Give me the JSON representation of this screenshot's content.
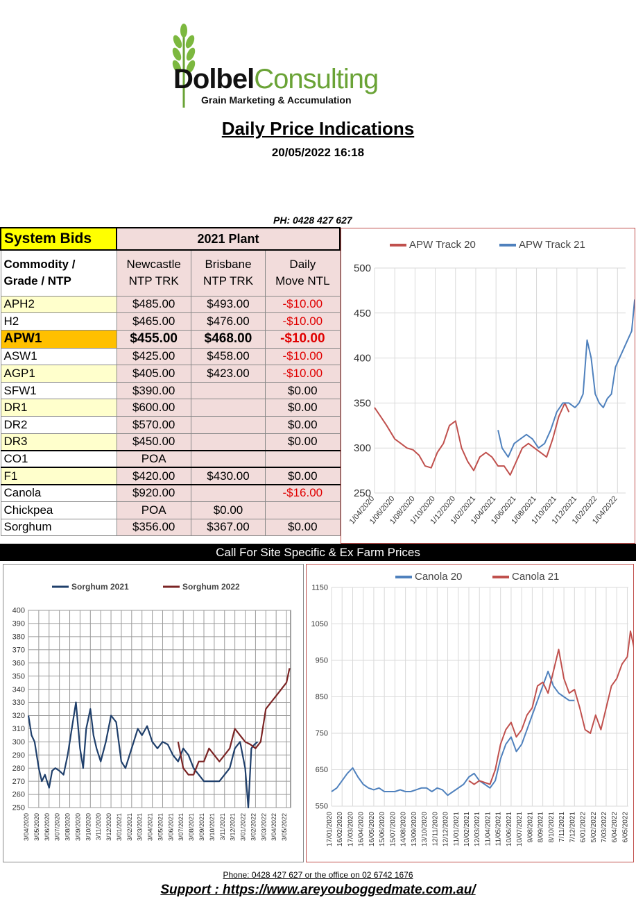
{
  "header": {
    "logo_brand_1": "Dolbel",
    "logo_brand_2": "Consulting",
    "logo_tagline": "Grain Marketing & Accumulation",
    "title": "Daily Price Indications",
    "datetime": "20/05/2022 16:18",
    "phone": "PH: 0428 427 627"
  },
  "table": {
    "system_bids": "System Bids",
    "plant": "2021 Plant",
    "col_commodity_1": "Commodity /",
    "col_commodity_2": "Grade / NTP",
    "col_newcastle_1": "Newcastle",
    "col_newcastle_2": "NTP TRK",
    "col_brisbane_1": "Brisbane",
    "col_brisbane_2": "NTP TRK",
    "col_move_1": "Daily",
    "col_move_2": "Move NTL",
    "rows": [
      {
        "grade": "APH2",
        "newcastle": "$485.00",
        "brisbane": "$493.00",
        "move": "-$10.00"
      },
      {
        "grade": "H2",
        "newcastle": "$465.00",
        "brisbane": "$476.00",
        "move": "-$10.00"
      },
      {
        "grade": "APW1",
        "newcastle": "$455.00",
        "brisbane": "$468.00",
        "move": "-$10.00"
      },
      {
        "grade": "ASW1",
        "newcastle": "$425.00",
        "brisbane": "$458.00",
        "move": "-$10.00"
      },
      {
        "grade": "AGP1",
        "newcastle": "$405.00",
        "brisbane": "$423.00",
        "move": "-$10.00"
      },
      {
        "grade": "SFW1",
        "newcastle": "$390.00",
        "brisbane": "",
        "move": "$0.00"
      },
      {
        "grade": "DR1",
        "newcastle": "$600.00",
        "brisbane": "",
        "move": "$0.00"
      },
      {
        "grade": "DR2",
        "newcastle": "$570.00",
        "brisbane": "",
        "move": "$0.00"
      },
      {
        "grade": "DR3",
        "newcastle": "$450.00",
        "brisbane": "",
        "move": "$0.00"
      },
      {
        "grade": "CO1",
        "newcastle": "POA",
        "brisbane": "",
        "move": ""
      },
      {
        "grade": "F1",
        "newcastle": "$420.00",
        "brisbane": "$430.00",
        "move": "$0.00"
      },
      {
        "grade": "Canola",
        "newcastle": "$920.00",
        "brisbane": "",
        "move": "-$16.00"
      },
      {
        "grade": "Chickpea",
        "newcastle": "POA",
        "brisbane": "$0.00",
        "move": ""
      },
      {
        "grade": "Sorghum",
        "newcastle": "$356.00",
        "brisbane": "$367.00",
        "move": "$0.00"
      }
    ]
  },
  "banner": "Call For Site Specific & Ex Farm Prices",
  "footer": {
    "phone": "Phone: 0428 427 627 or the office on 02 6742 1676",
    "support": "Support : https://www.areyouboggedmate.com.au/"
  },
  "colors": {
    "red_series": "#c0504d",
    "blue_series": "#4f81bd",
    "sorghum_2021": "#1f3f6b",
    "sorghum_2022": "#7b2424"
  },
  "chart_data": [
    {
      "type": "line",
      "ylim": [
        250,
        500
      ],
      "yticks": [
        250,
        300,
        350,
        400,
        450,
        500
      ],
      "xticks": [
        "1/04/2020",
        "1/06/2020",
        "1/08/2020",
        "1/10/2020",
        "1/12/2020",
        "1/02/2021",
        "1/04/2021",
        "1/06/2021",
        "1/08/2021",
        "1/10/2021",
        "1/12/2021",
        "1/02/2022",
        "1/04/2022"
      ],
      "legend": "top",
      "series": [
        {
          "name": "APW Track 20",
          "color": "#c0504d",
          "x": [
            0,
            0.3,
            0.6,
            1,
            1.3,
            1.6,
            1.9,
            2.2,
            2.5,
            2.8,
            3.1,
            3.4,
            3.7,
            4,
            4.3,
            4.6,
            4.9,
            5.2,
            5.5,
            5.8,
            6.1,
            6.4,
            6.7,
            7,
            7.3,
            7.6,
            7.9,
            8.2,
            8.5,
            8.8,
            9.1,
            9.4,
            9.6
          ],
          "y": [
            345,
            335,
            325,
            310,
            305,
            300,
            298,
            292,
            280,
            278,
            295,
            305,
            325,
            330,
            300,
            285,
            275,
            290,
            295,
            290,
            280,
            280,
            270,
            285,
            300,
            305,
            300,
            295,
            290,
            310,
            335,
            350,
            340
          ]
        },
        {
          "name": "APW Track 21",
          "color": "#4f81bd",
          "x": [
            6.1,
            6.3,
            6.6,
            6.9,
            7.2,
            7.5,
            7.8,
            8.1,
            8.4,
            8.7,
            9,
            9.3,
            9.6,
            9.9,
            10.1,
            10.3,
            10.5,
            10.7,
            10.9,
            11.1,
            11.3,
            11.5,
            11.7,
            11.9,
            12.1,
            12.3,
            12.5,
            12.7,
            12.85
          ],
          "y": [
            320,
            300,
            290,
            305,
            310,
            315,
            310,
            300,
            305,
            320,
            340,
            350,
            350,
            345,
            350,
            360,
            420,
            400,
            360,
            350,
            345,
            355,
            360,
            390,
            400,
            410,
            420,
            430,
            465
          ]
        }
      ]
    },
    {
      "type": "line",
      "ylim": [
        250,
        400
      ],
      "yticks": [
        250,
        260,
        270,
        280,
        290,
        300,
        310,
        320,
        330,
        340,
        350,
        360,
        370,
        380,
        390,
        400
      ],
      "xticks": [
        "3/04/2020",
        "3/05/2020",
        "3/06/2020",
        "3/07/2020",
        "3/08/2020",
        "3/09/2020",
        "3/10/2020",
        "3/11/2020",
        "3/12/2020",
        "3/01/2021",
        "3/02/2021",
        "3/03/2021",
        "3/04/2021",
        "3/05/2021",
        "3/06/2021",
        "3/07/2021",
        "3/08/2021",
        "3/09/2021",
        "3/10/2021",
        "3/11/2021",
        "3/12/2021",
        "3/01/2022",
        "3/02/2022",
        "3/03/2022",
        "3/04/2022",
        "3/05/2022"
      ],
      "legend": "top",
      "series": [
        {
          "name": "Sorghum 2021",
          "color": "#1f3f6b",
          "x": [
            0,
            0.3,
            0.6,
            1,
            1.3,
            1.6,
            2,
            2.3,
            2.6,
            3,
            3.4,
            3.8,
            4.2,
            4.6,
            5,
            5.3,
            5.6,
            6,
            6.3,
            6.6,
            7,
            7.5,
            8,
            8.5,
            9,
            9.4,
            9.8,
            10.2,
            10.6,
            11,
            11.5,
            12,
            12.5,
            13,
            13.5,
            14,
            14.5,
            15,
            15.5,
            16,
            16.5,
            17,
            17.5,
            18,
            18.5,
            19,
            19.5,
            20,
            20.5,
            21,
            21.3,
            21.6,
            21.9,
            22.2
          ],
          "y": [
            320,
            305,
            300,
            280,
            270,
            275,
            265,
            278,
            280,
            278,
            275,
            290,
            310,
            330,
            295,
            280,
            310,
            325,
            305,
            295,
            285,
            300,
            320,
            315,
            285,
            280,
            290,
            300,
            310,
            305,
            312,
            300,
            295,
            300,
            298,
            290,
            285,
            295,
            290,
            280,
            275,
            270,
            270,
            270,
            270,
            275,
            280,
            295,
            300,
            280,
            250,
            295,
            298,
            300
          ]
        },
        {
          "name": "Sorghum 2022",
          "color": "#7b2424",
          "x": [
            14.5,
            15,
            15.5,
            16,
            16.5,
            17,
            17.5,
            18,
            18.5,
            19,
            19.5,
            20,
            20.5,
            21,
            21.5,
            22,
            22.5,
            23,
            23.5,
            24,
            24.5,
            25,
            25.3
          ],
          "y": [
            300,
            280,
            275,
            275,
            285,
            285,
            295,
            290,
            285,
            290,
            295,
            310,
            305,
            300,
            298,
            295,
            300,
            325,
            330,
            335,
            340,
            345,
            356
          ]
        }
      ]
    },
    {
      "type": "line",
      "ylim": [
        550,
        1150
      ],
      "yticks": [
        550,
        650,
        750,
        850,
        950,
        1050,
        1150
      ],
      "xticks": [
        "17/01/2020",
        "16/02/2020",
        "17/03/2020",
        "16/04/2020",
        "16/05/2020",
        "15/06/2020",
        "15/07/2020",
        "14/08/2020",
        "13/09/2020",
        "13/10/2020",
        "12/11/2020",
        "12/12/2020",
        "11/01/2021",
        "10/02/2021",
        "12/03/2021",
        "11/04/2021",
        "11/05/2021",
        "10/06/2021",
        "10/07/2021",
        "9/08/2021",
        "8/09/2021",
        "8/10/2021",
        "7/11/2021",
        "7/12/2021",
        "6/01/2022",
        "5/02/2022",
        "7/03/2022",
        "6/04/2022",
        "6/05/2022"
      ],
      "legend": "top",
      "series": [
        {
          "name": "Canola 20",
          "color": "#4f81bd",
          "x": [
            0,
            0.5,
            1,
            1.5,
            2,
            2.5,
            3,
            3.5,
            4,
            4.5,
            5,
            5.5,
            6,
            6.5,
            7,
            7.5,
            8,
            8.5,
            9,
            9.5,
            10,
            10.5,
            11,
            11.5,
            12,
            12.5,
            13,
            13.5,
            14,
            14.5,
            15,
            15.5,
            16,
            16.5,
            17,
            17.5,
            18,
            18.5,
            19,
            19.5,
            20,
            20.5,
            21,
            21.5,
            22,
            22.5,
            23
          ],
          "y": [
            590,
            600,
            620,
            640,
            655,
            630,
            610,
            600,
            595,
            600,
            590,
            590,
            590,
            595,
            590,
            590,
            595,
            600,
            600,
            590,
            600,
            595,
            580,
            590,
            600,
            610,
            630,
            640,
            620,
            610,
            600,
            620,
            680,
            720,
            740,
            700,
            720,
            760,
            800,
            840,
            880,
            920,
            880,
            860,
            850,
            840,
            840
          ]
        },
        {
          "name": "Canola 21",
          "color": "#c0504d",
          "x": [
            13,
            13.5,
            14,
            14.5,
            15,
            15.5,
            16,
            16.5,
            17,
            17.5,
            18,
            18.5,
            19,
            19.5,
            20,
            20.5,
            21,
            21.5,
            22,
            22.5,
            23,
            23.5,
            24,
            24.5,
            25,
            25.5,
            26,
            26.5,
            27,
            27.5,
            28,
            28.3,
            28.6,
            28.9
          ],
          "y": [
            620,
            610,
            620,
            615,
            610,
            650,
            720,
            760,
            780,
            740,
            760,
            800,
            820,
            880,
            890,
            860,
            920,
            980,
            900,
            860,
            870,
            820,
            760,
            750,
            800,
            760,
            820,
            880,
            900,
            940,
            960,
            1030,
            990,
            920
          ]
        }
      ]
    }
  ]
}
